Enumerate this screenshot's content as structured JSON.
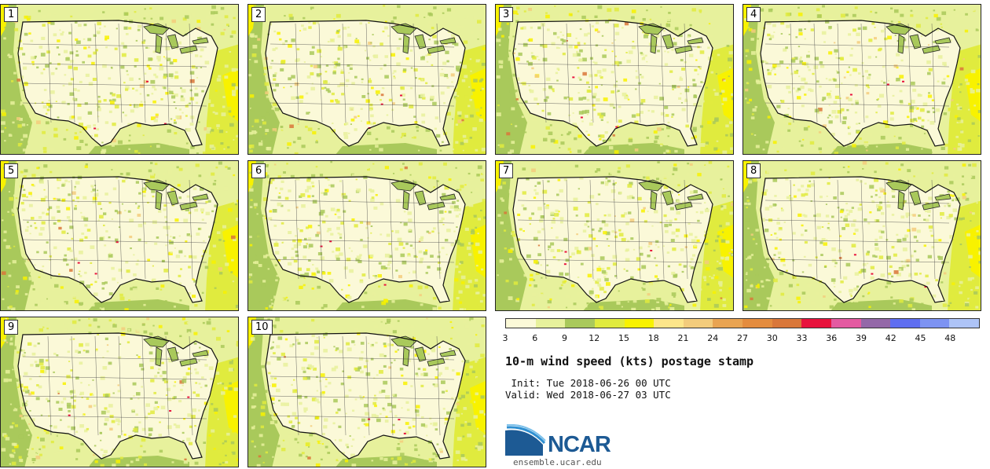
{
  "panels": [
    {
      "label": "1"
    },
    {
      "label": "2"
    },
    {
      "label": "3"
    },
    {
      "label": "4"
    },
    {
      "label": "5"
    },
    {
      "label": "6"
    },
    {
      "label": "7"
    },
    {
      "label": "8"
    },
    {
      "label": "9"
    },
    {
      "label": "10"
    }
  ],
  "colorbar": {
    "colors": [
      "#fbf9d8",
      "#e7f19c",
      "#a9c95b",
      "#e0eb3e",
      "#f8f200",
      "#fde68a",
      "#f3cc7c",
      "#e9a452",
      "#e48c3e",
      "#d9773a",
      "#e8133d",
      "#e45aa1",
      "#9468a8",
      "#5f6ef0",
      "#7d93f2",
      "#aec4f7"
    ],
    "ticks": [
      "3",
      "6",
      "9",
      "12",
      "15",
      "18",
      "21",
      "24",
      "27",
      "30",
      "33",
      "36",
      "39",
      "42",
      "45",
      "48"
    ]
  },
  "info": {
    "title": "10-m wind speed (kts) postage stamp",
    "init": " Init: Tue 2018-06-26 00 UTC",
    "valid": "Valid: Wed 2018-06-27 03 UTC"
  },
  "logo": {
    "text": "NCAR",
    "site": "ensemble.ucar.edu"
  }
}
